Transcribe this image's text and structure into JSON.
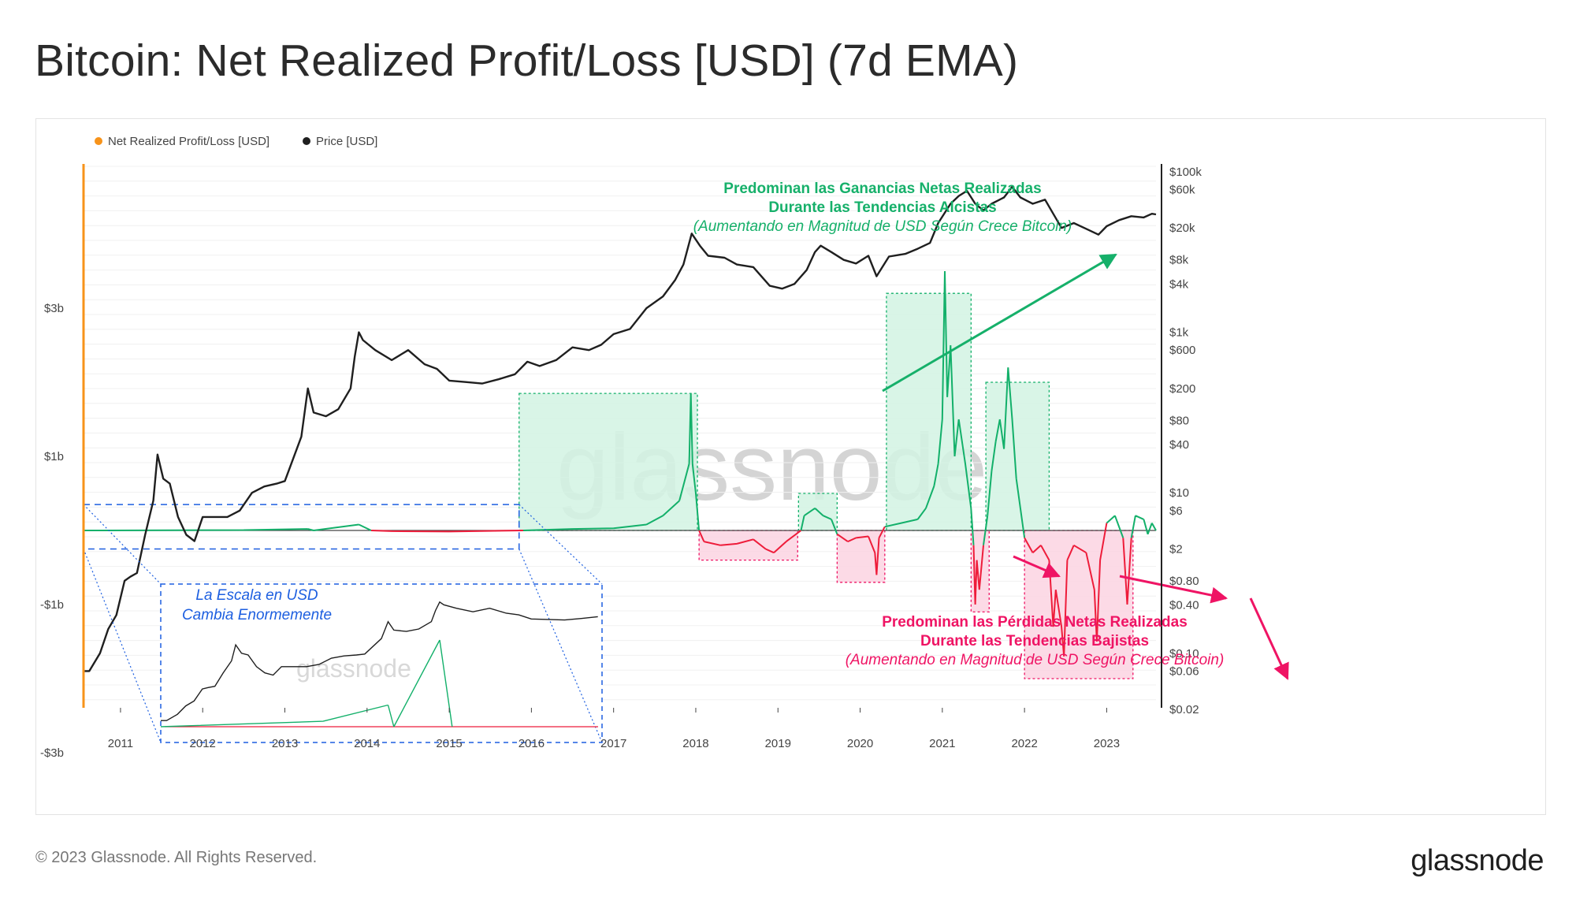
{
  "title": "Bitcoin: Net Realized Profit/Loss [USD] (7d EMA)",
  "footer": {
    "copyright": "© 2023 Glassnode. All Rights Reserved.",
    "brand": "glassnode"
  },
  "watermark": "glassnode",
  "colors": {
    "profit": "#13b06a",
    "loss": "#ee1c3a",
    "price": "#1f1f1f",
    "legend_nrpl": "#f7931a",
    "profit_box": "#13b06a",
    "loss_box": "#ef1464",
    "scale_box": "#1d5fe0"
  },
  "chart_data": {
    "type": "line",
    "legend": [
      {
        "name": "Net Realized Profit/Loss [USD]",
        "color": "#f7931a"
      },
      {
        "name": "Price [USD]",
        "color": "#1f1f1f"
      }
    ],
    "x_ticks": [
      "2011",
      "2012",
      "2013",
      "2014",
      "2015",
      "2016",
      "2017",
      "2018",
      "2019",
      "2020",
      "2021",
      "2022",
      "2023"
    ],
    "xlim": [
      2010.55,
      2023.6
    ],
    "left_axis": {
      "ticks": [
        "$3b",
        "$1b",
        "-$1b",
        "-$3b"
      ],
      "tick_values": [
        3000000000,
        1000000000,
        -1000000000,
        -3000000000
      ],
      "ylim": [
        -3000000000,
        3000000000
      ]
    },
    "right_axis": {
      "scale": "log",
      "ticks": [
        "$100k",
        "$60k",
        "$20k",
        "$8k",
        "$4k",
        "$1k",
        "$600",
        "$200",
        "$80",
        "$40",
        "$10",
        "$6",
        "$2",
        "$0.80",
        "$0.40",
        "$0.10",
        "$0.06",
        "$0.02"
      ],
      "ylim": [
        0.02,
        100000
      ]
    },
    "series": [
      {
        "name": "Price [USD]",
        "axis": "right",
        "points": [
          [
            2010.55,
            0.06
          ],
          [
            2010.62,
            0.06
          ],
          [
            2010.75,
            0.1
          ],
          [
            2010.85,
            0.2
          ],
          [
            2010.95,
            0.3
          ],
          [
            2011.05,
            0.8
          ],
          [
            2011.12,
            0.9
          ],
          [
            2011.2,
            1.0
          ],
          [
            2011.3,
            3.0
          ],
          [
            2011.4,
            8.0
          ],
          [
            2011.45,
            30.0
          ],
          [
            2011.52,
            15.0
          ],
          [
            2011.6,
            13.0
          ],
          [
            2011.7,
            5.0
          ],
          [
            2011.8,
            3.0
          ],
          [
            2011.9,
            2.5
          ],
          [
            2012.0,
            5.0
          ],
          [
            2012.15,
            5.0
          ],
          [
            2012.3,
            5.0
          ],
          [
            2012.45,
            6.0
          ],
          [
            2012.6,
            10.0
          ],
          [
            2012.75,
            12.0
          ],
          [
            2012.9,
            13.0
          ],
          [
            2013.0,
            14.0
          ],
          [
            2013.2,
            50.0
          ],
          [
            2013.28,
            200.0
          ],
          [
            2013.35,
            100.0
          ],
          [
            2013.5,
            90.0
          ],
          [
            2013.65,
            110.0
          ],
          [
            2013.8,
            200.0
          ],
          [
            2013.85,
            500.0
          ],
          [
            2013.9,
            1000.0
          ],
          [
            2013.95,
            800.0
          ],
          [
            2014.1,
            600.0
          ],
          [
            2014.3,
            450.0
          ],
          [
            2014.5,
            600.0
          ],
          [
            2014.7,
            400.0
          ],
          [
            2014.85,
            350.0
          ],
          [
            2015.0,
            250.0
          ],
          [
            2015.2,
            240.0
          ],
          [
            2015.4,
            230.0
          ],
          [
            2015.6,
            260.0
          ],
          [
            2015.8,
            300.0
          ],
          [
            2015.95,
            430.0
          ],
          [
            2016.1,
            380.0
          ],
          [
            2016.3,
            450.0
          ],
          [
            2016.5,
            650.0
          ],
          [
            2016.7,
            600.0
          ],
          [
            2016.85,
            700.0
          ],
          [
            2017.0,
            950.0
          ],
          [
            2017.2,
            1100.0
          ],
          [
            2017.4,
            2000.0
          ],
          [
            2017.6,
            2800.0
          ],
          [
            2017.75,
            4500.0
          ],
          [
            2017.85,
            7000.0
          ],
          [
            2017.95,
            17000.0
          ],
          [
            2018.05,
            12000.0
          ],
          [
            2018.15,
            9000.0
          ],
          [
            2018.35,
            8500.0
          ],
          [
            2018.5,
            7000.0
          ],
          [
            2018.7,
            6500.0
          ],
          [
            2018.9,
            3800.0
          ],
          [
            2019.05,
            3500.0
          ],
          [
            2019.2,
            4000.0
          ],
          [
            2019.35,
            6000.0
          ],
          [
            2019.45,
            10000.0
          ],
          [
            2019.52,
            12000.0
          ],
          [
            2019.65,
            10000.0
          ],
          [
            2019.8,
            8000.0
          ],
          [
            2019.95,
            7200.0
          ],
          [
            2020.1,
            9000.0
          ],
          [
            2020.2,
            5000.0
          ],
          [
            2020.35,
            8800.0
          ],
          [
            2020.55,
            9500.0
          ],
          [
            2020.7,
            11000.0
          ],
          [
            2020.85,
            13000.0
          ],
          [
            2020.95,
            23000.0
          ],
          [
            2021.1,
            40000.0
          ],
          [
            2021.2,
            50000.0
          ],
          [
            2021.3,
            58000.0
          ],
          [
            2021.4,
            40000.0
          ],
          [
            2021.5,
            33000.0
          ],
          [
            2021.6,
            40000.0
          ],
          [
            2021.75,
            48000.0
          ],
          [
            2021.85,
            65000.0
          ],
          [
            2021.95,
            48000.0
          ],
          [
            2022.1,
            40000.0
          ],
          [
            2022.25,
            45000.0
          ],
          [
            2022.35,
            30000.0
          ],
          [
            2022.45,
            20000.0
          ],
          [
            2022.6,
            23000.0
          ],
          [
            2022.75,
            19500.0
          ],
          [
            2022.9,
            16500.0
          ],
          [
            2023.0,
            21000.0
          ],
          [
            2023.15,
            25000.0
          ],
          [
            2023.3,
            28000.0
          ],
          [
            2023.45,
            27000.0
          ],
          [
            2023.55,
            30000.0
          ],
          [
            2023.6,
            29500.0
          ]
        ]
      },
      {
        "name": "Net Realized Profit/Loss [USD]",
        "axis": "left",
        "points": [
          [
            2010.55,
            0
          ],
          [
            2012.5,
            5000000
          ],
          [
            2013.28,
            20000000
          ],
          [
            2013.35,
            0
          ],
          [
            2013.9,
            80000000
          ],
          [
            2014.05,
            0
          ],
          [
            2014.3,
            -10000000
          ],
          [
            2015.0,
            -15000000
          ],
          [
            2015.9,
            0
          ],
          [
            2016.5,
            20000000
          ],
          [
            2017.0,
            30000000
          ],
          [
            2017.4,
            80000000
          ],
          [
            2017.6,
            200000000
          ],
          [
            2017.8,
            400000000
          ],
          [
            2017.92,
            900000000
          ],
          [
            2017.94,
            1850000000
          ],
          [
            2017.96,
            900000000
          ],
          [
            2018.0,
            500000000
          ],
          [
            2018.04,
            0
          ],
          [
            2018.1,
            -150000000
          ],
          [
            2018.3,
            -200000000
          ],
          [
            2018.5,
            -180000000
          ],
          [
            2018.7,
            -120000000
          ],
          [
            2018.85,
            -250000000
          ],
          [
            2018.95,
            -300000000
          ],
          [
            2019.1,
            -150000000
          ],
          [
            2019.28,
            0
          ],
          [
            2019.32,
            200000000
          ],
          [
            2019.45,
            300000000
          ],
          [
            2019.55,
            200000000
          ],
          [
            2019.65,
            150000000
          ],
          [
            2019.72,
            -50000000
          ],
          [
            2019.85,
            -150000000
          ],
          [
            2019.95,
            -100000000
          ],
          [
            2020.1,
            -80000000
          ],
          [
            2020.18,
            -300000000
          ],
          [
            2020.2,
            -600000000
          ],
          [
            2020.23,
            -100000000
          ],
          [
            2020.3,
            50000000
          ],
          [
            2020.5,
            100000000
          ],
          [
            2020.7,
            150000000
          ],
          [
            2020.8,
            300000000
          ],
          [
            2020.9,
            600000000
          ],
          [
            2020.95,
            900000000
          ],
          [
            2021.0,
            1500000000
          ],
          [
            2021.03,
            3500000000
          ],
          [
            2021.06,
            1800000000
          ],
          [
            2021.1,
            2500000000
          ],
          [
            2021.15,
            1000000000
          ],
          [
            2021.2,
            1500000000
          ],
          [
            2021.28,
            900000000
          ],
          [
            2021.35,
            300000000
          ],
          [
            2021.38,
            -200000000
          ],
          [
            2021.4,
            -1000000000
          ],
          [
            2021.42,
            -400000000
          ],
          [
            2021.45,
            -800000000
          ],
          [
            2021.5,
            -200000000
          ],
          [
            2021.55,
            200000000
          ],
          [
            2021.6,
            800000000
          ],
          [
            2021.65,
            1200000000
          ],
          [
            2021.7,
            1500000000
          ],
          [
            2021.75,
            1100000000
          ],
          [
            2021.8,
            2200000000
          ],
          [
            2021.85,
            1500000000
          ],
          [
            2021.9,
            700000000
          ],
          [
            2021.95,
            300000000
          ],
          [
            2022.0,
            -100000000
          ],
          [
            2022.1,
            -300000000
          ],
          [
            2022.2,
            -200000000
          ],
          [
            2022.3,
            -400000000
          ],
          [
            2022.35,
            -1300000000
          ],
          [
            2022.38,
            -800000000
          ],
          [
            2022.45,
            -1300000000
          ],
          [
            2022.48,
            -1700000000
          ],
          [
            2022.52,
            -400000000
          ],
          [
            2022.6,
            -200000000
          ],
          [
            2022.75,
            -300000000
          ],
          [
            2022.85,
            -800000000
          ],
          [
            2022.88,
            -1500000000
          ],
          [
            2022.92,
            -400000000
          ],
          [
            2023.0,
            100000000
          ],
          [
            2023.1,
            200000000
          ],
          [
            2023.2,
            -100000000
          ],
          [
            2023.25,
            -1000000000
          ],
          [
            2023.3,
            -100000000
          ],
          [
            2023.35,
            200000000
          ],
          [
            2023.45,
            150000000
          ],
          [
            2023.5,
            -50000000
          ],
          [
            2023.55,
            100000000
          ],
          [
            2023.6,
            0
          ]
        ]
      }
    ],
    "annotations": {
      "profit_title_1": "Predominan las Ganancias Netas Realizadas",
      "profit_title_2": "Durante las Tendencias Alcistas",
      "profit_sub": "(Aumentando en Magnitud de USD Según Crece Bitcoin)",
      "loss_title_1": "Predominan las Pérdidas Netas Realizadas",
      "loss_title_2": "Durante las Tendencias Bajistas",
      "loss_sub": "(Aumentando en Magnitud de USD Según Crece Bitcoin)",
      "scale_note_1": "La Escala en USD",
      "scale_note_2": "Cambia Enormemente",
      "inset_watermark": "glassnode"
    }
  }
}
